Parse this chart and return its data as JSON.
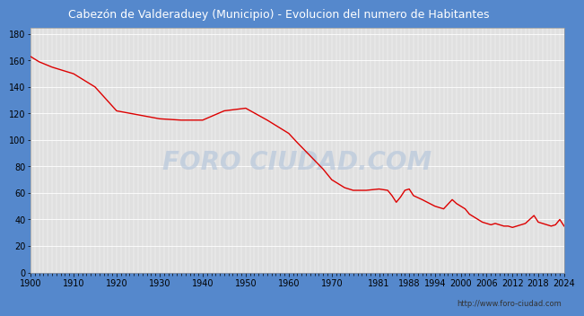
{
  "title": "Cabezón de Valderaduey (Municipio) - Evolucion del numero de Habitantes",
  "title_color": "#ffffff",
  "title_bg_color": "#5588cc",
  "plot_bg_color": "#e0e0e0",
  "fig_bg_color": "#5588cc",
  "line_color": "#dd0000",
  "grid_color": "#ffffff",
  "watermark_text": "FORO CIUDAD.COM",
  "watermark_color": "#b8c8dc",
  "url_text": "http://www.foro-ciudad.com",
  "url_color": "#333333",
  "yticks": [
    0,
    20,
    40,
    60,
    80,
    100,
    120,
    140,
    160,
    180
  ],
  "ylim": [
    0,
    185
  ],
  "xtick_positions": [
    1900,
    1910,
    1920,
    1930,
    1940,
    1950,
    1960,
    1970,
    1981,
    1988,
    1994,
    2000,
    2006,
    2012,
    2018,
    2024
  ],
  "xtick_labels": [
    "1900",
    "1910",
    "1920",
    "1930",
    "1940",
    "1950",
    "1960",
    "1970",
    "1981",
    "1988",
    "1994",
    "2000",
    "2006",
    "2012",
    "2018",
    "2024"
  ],
  "xlim": [
    1900,
    2024
  ],
  "data": [
    [
      1900,
      163
    ],
    [
      1901,
      161
    ],
    [
      1902,
      159
    ],
    [
      1905,
      155
    ],
    [
      1910,
      150
    ],
    [
      1915,
      140
    ],
    [
      1920,
      122
    ],
    [
      1925,
      119
    ],
    [
      1930,
      116
    ],
    [
      1935,
      115
    ],
    [
      1940,
      115
    ],
    [
      1945,
      122
    ],
    [
      1950,
      124
    ],
    [
      1955,
      115
    ],
    [
      1960,
      105
    ],
    [
      1962,
      98
    ],
    [
      1965,
      88
    ],
    [
      1968,
      78
    ],
    [
      1970,
      70
    ],
    [
      1973,
      64
    ],
    [
      1975,
      62
    ],
    [
      1978,
      62
    ],
    [
      1981,
      63
    ],
    [
      1983,
      62
    ],
    [
      1984,
      58
    ],
    [
      1985,
      53
    ],
    [
      1986,
      57
    ],
    [
      1987,
      62
    ],
    [
      1988,
      63
    ],
    [
      1989,
      58
    ],
    [
      1991,
      55
    ],
    [
      1994,
      50
    ],
    [
      1996,
      48
    ],
    [
      1998,
      55
    ],
    [
      1999,
      52
    ],
    [
      2000,
      50
    ],
    [
      2001,
      48
    ],
    [
      2002,
      44
    ],
    [
      2003,
      42
    ],
    [
      2004,
      40
    ],
    [
      2005,
      38
    ],
    [
      2006,
      37
    ],
    [
      2007,
      36
    ],
    [
      2008,
      37
    ],
    [
      2009,
      36
    ],
    [
      2010,
      35
    ],
    [
      2011,
      35
    ],
    [
      2012,
      34
    ],
    [
      2013,
      35
    ],
    [
      2014,
      36
    ],
    [
      2015,
      37
    ],
    [
      2016,
      40
    ],
    [
      2017,
      43
    ],
    [
      2018,
      38
    ],
    [
      2019,
      37
    ],
    [
      2020,
      36
    ],
    [
      2021,
      35
    ],
    [
      2022,
      36
    ],
    [
      2023,
      40
    ],
    [
      2024,
      35
    ]
  ]
}
